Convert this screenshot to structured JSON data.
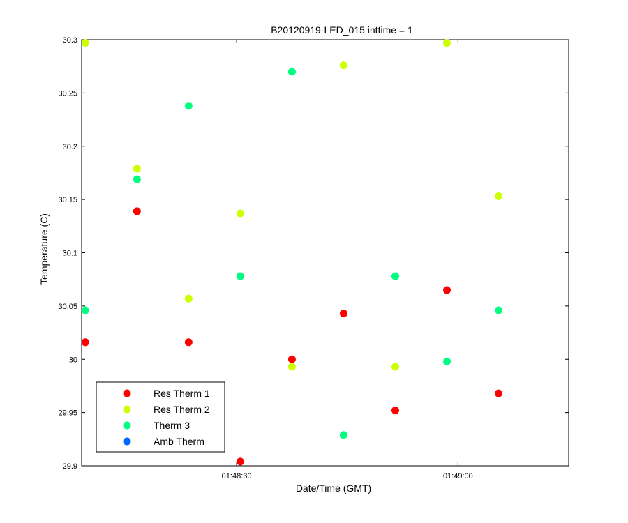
{
  "chart_data": {
    "type": "scatter",
    "title": "B20120919-LED_015 inttime = 1",
    "xlabel": "Date/Time (GMT)",
    "ylabel": "Temperature (C)",
    "x_unit": "seconds after 01:48:00 GMT",
    "xlim": [
      9,
      75
    ],
    "ylim": [
      29.9,
      30.3
    ],
    "x_ticks": [
      {
        "value": 30,
        "label": "01:48:30"
      },
      {
        "value": 60,
        "label": "01:49:00"
      }
    ],
    "y_ticks": [
      {
        "value": 29.9,
        "label": "29.9"
      },
      {
        "value": 29.95,
        "label": "29.95"
      },
      {
        "value": 30,
        "label": "30"
      },
      {
        "value": 30.05,
        "label": "30.05"
      },
      {
        "value": 30.1,
        "label": "30.1"
      },
      {
        "value": 30.15,
        "label": "30.15"
      },
      {
        "value": 30.2,
        "label": "30.2"
      },
      {
        "value": 30.25,
        "label": "30.25"
      },
      {
        "value": 30.3,
        "label": "30.3"
      }
    ],
    "grid": false,
    "legend": "bottom-left",
    "series": [
      {
        "name": "Res Therm 1",
        "color": "#ff0000",
        "points": [
          [
            9.5,
            30.016
          ],
          [
            16.5,
            30.139
          ],
          [
            23.5,
            30.016
          ],
          [
            30.5,
            29.904
          ],
          [
            37.5,
            30.0
          ],
          [
            44.5,
            30.043
          ],
          [
            51.5,
            29.952
          ],
          [
            58.5,
            30.065
          ],
          [
            65.5,
            29.968
          ]
        ]
      },
      {
        "name": "Res Therm 2",
        "color": "#ccff00",
        "points": [
          [
            9.5,
            30.297
          ],
          [
            16.5,
            30.179
          ],
          [
            23.5,
            30.057
          ],
          [
            30.5,
            30.137
          ],
          [
            37.5,
            29.993
          ],
          [
            44.5,
            30.276
          ],
          [
            51.5,
            29.993
          ],
          [
            58.5,
            30.297
          ],
          [
            65.5,
            30.153
          ]
        ]
      },
      {
        "name": "Therm 3",
        "color": "#00ff80",
        "points": [
          [
            9.5,
            30.046
          ],
          [
            16.5,
            30.169
          ],
          [
            23.5,
            30.238
          ],
          [
            30.5,
            30.078
          ],
          [
            37.5,
            30.27
          ],
          [
            44.5,
            29.929
          ],
          [
            51.5,
            30.078
          ],
          [
            58.5,
            29.998
          ],
          [
            65.5,
            30.046
          ]
        ]
      },
      {
        "name": "Amb Therm",
        "color": "#0066ff",
        "points": []
      }
    ]
  }
}
